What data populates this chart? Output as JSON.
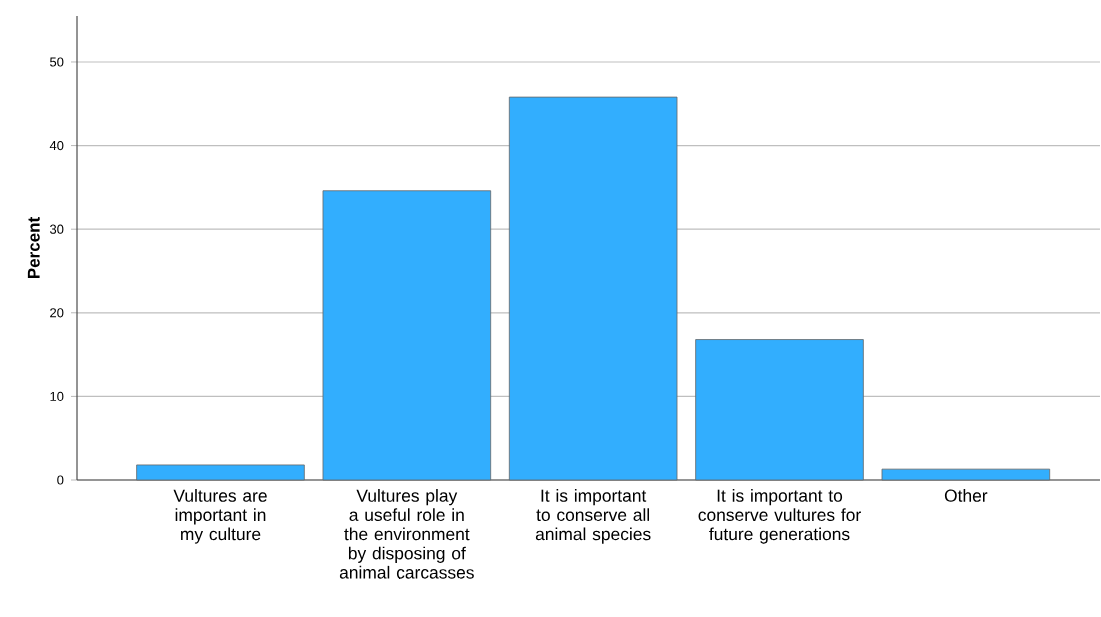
{
  "chart_data": {
    "type": "bar",
    "ylabel": "Percent",
    "categories": [
      "Vultures are important in my culture",
      "Vultures play a useful role in the environment by disposing of animal carcasses",
      "It is important to conserve all animal species",
      "It is important to conserve vultures for future generations",
      "Other"
    ],
    "values": [
      1.8,
      34.6,
      45.8,
      16.8,
      1.3
    ],
    "color": "#32aefe",
    "ylim": [
      0,
      55.5
    ],
    "yticks": [
      0,
      10,
      20,
      30,
      40,
      50
    ],
    "grid": "y"
  }
}
